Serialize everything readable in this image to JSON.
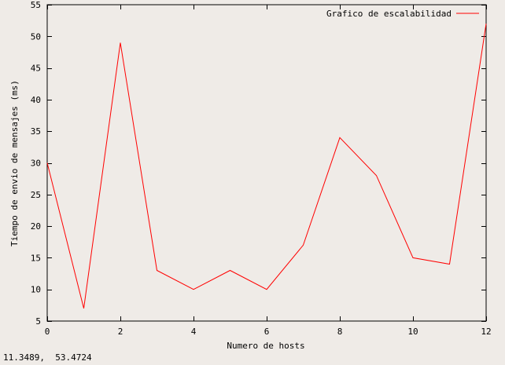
{
  "chart_data": {
    "type": "line",
    "title": "",
    "xlabel": "Numero de hosts",
    "ylabel": "Tiempo de envio de mensajes (ms)",
    "xlim": [
      0,
      12
    ],
    "ylim": [
      5,
      55
    ],
    "xticks": [
      0,
      2,
      4,
      6,
      8,
      10,
      12
    ],
    "yticks": [
      5,
      10,
      15,
      20,
      25,
      30,
      35,
      40,
      45,
      50,
      55
    ],
    "grid": false,
    "legend_position": "top-right",
    "series": [
      {
        "name": "Grafico de escalabilidad",
        "color": "#ff0000",
        "x": [
          0,
          1,
          2,
          3,
          4,
          5,
          6,
          7,
          8,
          9,
          10,
          11,
          12
        ],
        "y": [
          30,
          7,
          49,
          13,
          10,
          13,
          10,
          17,
          34,
          28,
          15,
          14,
          52
        ]
      }
    ]
  },
  "status": {
    "cursor_readout": "11.3489,  53.4724"
  },
  "colors": {
    "background": "#efebe7",
    "axis": "#000000",
    "series": "#ff0000"
  }
}
